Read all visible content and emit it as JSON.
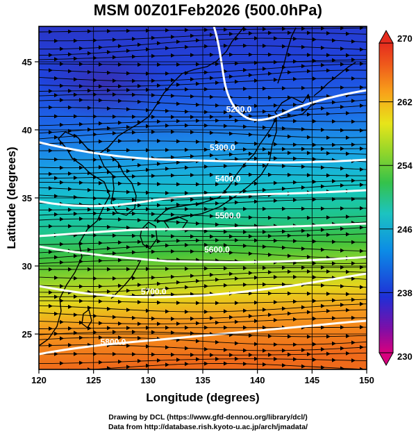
{
  "title": "MSM 00Z01Feb2026 (500.0hPa)",
  "xlabel": "Longitude (degrees)",
  "ylabel": "Latitude  (degrees)",
  "credits": [
    "Drawing by DCL (https://www.gfd-dennou.org/library/dcl/)",
    "Data from http://database.rish.kyoto-u.ac.jp/arch/jmadata/"
  ],
  "map": {
    "lon_range": [
      120,
      150
    ],
    "lat_range": [
      22.4,
      47.6
    ],
    "lon_ticks": [
      "120",
      "125",
      "130",
      "135",
      "140",
      "145",
      "150"
    ],
    "lat_ticks": [
      "25",
      "30",
      "35",
      "40",
      "45"
    ],
    "grid_spacing_deg": 5,
    "field": "temperature (shaded)",
    "vectors": "wind (streamlines with arrowheads, eastward flow)"
  },
  "contours": [
    {
      "label": "5200.0",
      "lon": 138.3,
      "lat": 41.3
    },
    {
      "label": "5300.0",
      "lon": 136.8,
      "lat": 38.5
    },
    {
      "label": "5400.0",
      "lon": 137.3,
      "lat": 36.2
    },
    {
      "label": "5500.0",
      "lon": 137.3,
      "lat": 33.5
    },
    {
      "label": "5600.0",
      "lon": 136.3,
      "lat": 31.0
    },
    {
      "label": "5700.0",
      "lon": 130.5,
      "lat": 27.9
    },
    {
      "label": "5800.0",
      "lon": 126.8,
      "lat": 24.2
    }
  ],
  "colorbar": {
    "ticks": [
      "270",
      "262",
      "254",
      "246",
      "238",
      "230"
    ],
    "colors": [
      "#d8007e",
      "#7b0fa8",
      "#1f2fd6",
      "#0c8ce6",
      "#1cc3c0",
      "#35c24a",
      "#95d62a",
      "#e7e51a",
      "#f8a21a",
      "#ef5a1b",
      "#e52c1e"
    ]
  }
}
